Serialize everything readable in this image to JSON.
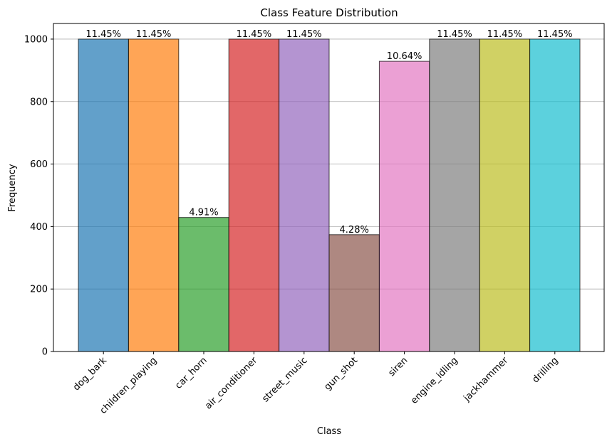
{
  "chart_data": {
    "type": "bar",
    "title": "Class Feature Distribution",
    "xlabel": "Class",
    "ylabel": "Frequency",
    "categories": [
      "dog_bark",
      "children_playing",
      "car_horn",
      "air_conditioner",
      "street_music",
      "gun_shot",
      "siren",
      "engine_idling",
      "jackhammer",
      "drilling"
    ],
    "values": [
      1000,
      1000,
      429,
      1000,
      1000,
      374,
      929,
      1000,
      1000,
      1000
    ],
    "data_labels": [
      "11.45%",
      "11.45%",
      "4.91%",
      "11.45%",
      "11.45%",
      "4.28%",
      "10.64%",
      "11.45%",
      "11.45%",
      "11.45%"
    ],
    "colors": [
      "#1f77b4",
      "#ff7f0e",
      "#2ca02c",
      "#d62728",
      "#9467bd",
      "#8c564b",
      "#e377c2",
      "#7f7f7f",
      "#bcbd22",
      "#17becf"
    ],
    "bar_opacity": 0.7,
    "ylim": [
      0,
      1050
    ],
    "yticks": [
      0,
      200,
      400,
      600,
      800,
      1000
    ],
    "ytick_labels": [
      "0",
      "200",
      "400",
      "600",
      "800",
      "1000"
    ],
    "grid": "y",
    "xtick_rotation": 45
  }
}
